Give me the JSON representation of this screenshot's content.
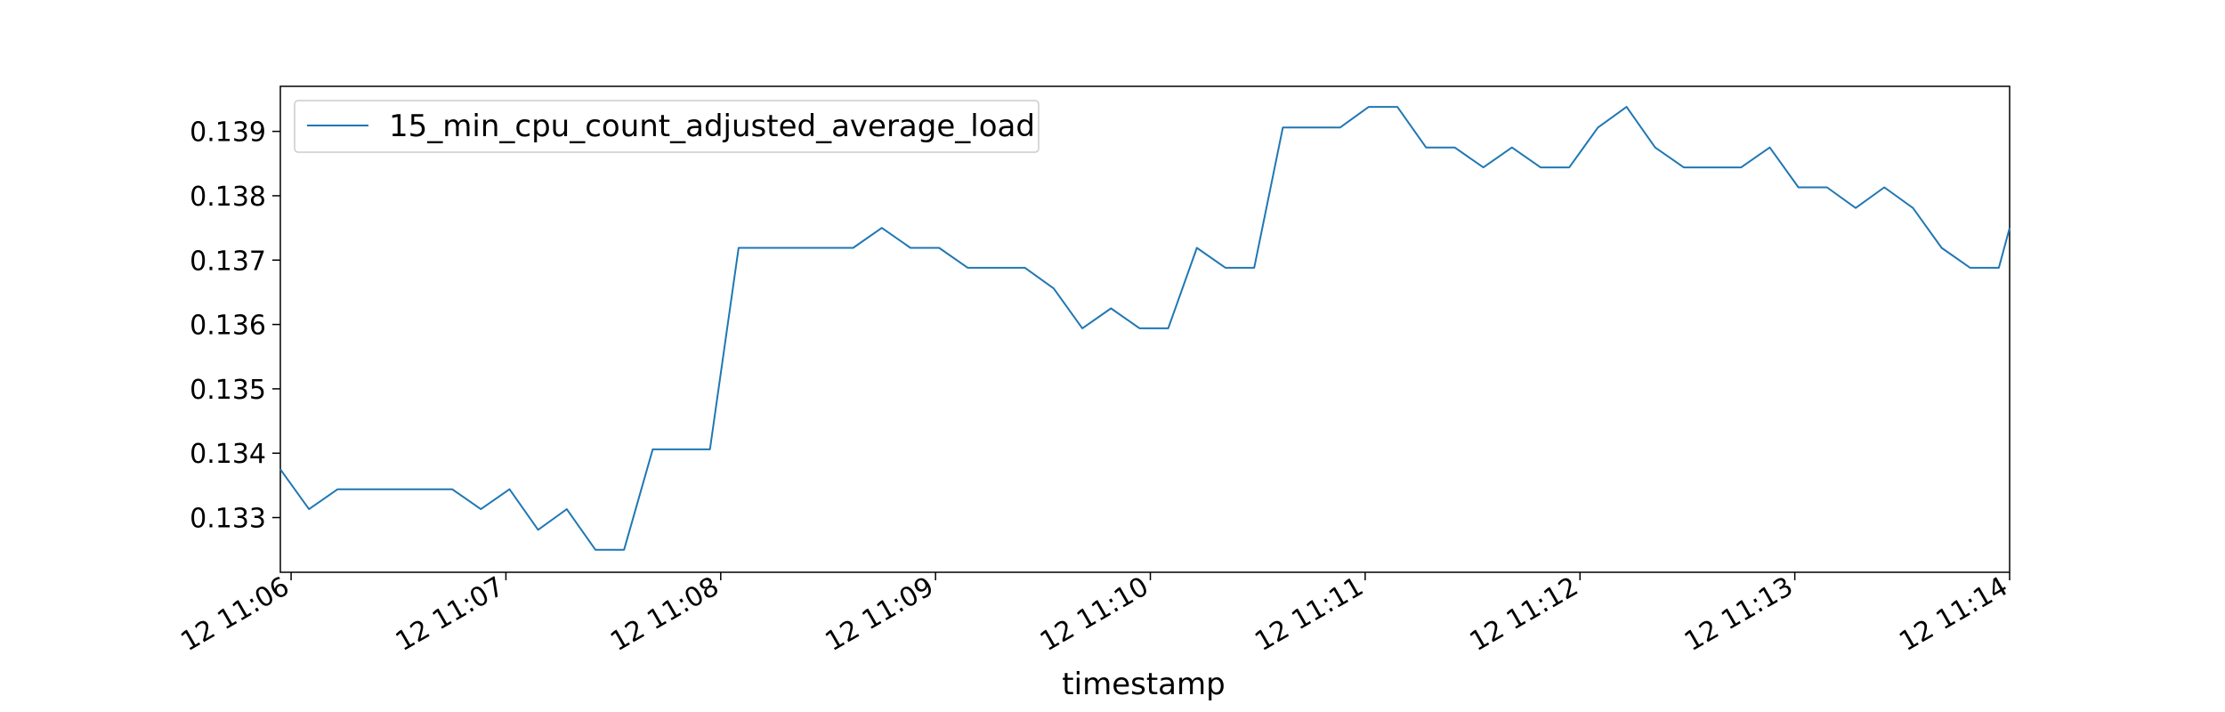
{
  "chart_data": {
    "type": "line",
    "title": "",
    "xlabel": "timestamp",
    "ylabel": "",
    "legend": {
      "placement": "upper-left"
    },
    "grid": false,
    "xlim": [
      "2024-01-12 11:05:57",
      "2024-01-12 11:14:00"
    ],
    "ylim": [
      0.13215,
      0.1397
    ],
    "x_ticks": [
      "2024-01-12 11:06",
      "2024-01-12 11:07",
      "2024-01-12 11:08",
      "2024-01-12 11:09",
      "2024-01-12 11:10",
      "2024-01-12 11:11",
      "2024-01-12 11:12",
      "2024-01-12 11:13",
      "2024-01-12 11:14"
    ],
    "x_tick_labels": [
      "12 11:06",
      "12 11:07",
      "12 11:08",
      "12 11:09",
      "12 11:10",
      "12 11:11",
      "12 11:12",
      "12 11:13",
      "12 11:14"
    ],
    "y_ticks": [
      0.133,
      0.134,
      0.135,
      0.136,
      0.137,
      0.138,
      0.139
    ],
    "y_tick_labels": [
      "0.133",
      "0.134",
      "0.135",
      "0.136",
      "0.137",
      "0.138",
      "0.139"
    ],
    "series": [
      {
        "name": "15_min_cpu_count_adjusted_average_load",
        "color": "#1f77b4",
        "x": [
          "2024-01-12 11:05:57",
          "2024-01-12 11:06:05",
          "2024-01-12 11:06:13",
          "2024-01-12 11:06:21",
          "2024-01-12 11:06:29",
          "2024-01-12 11:06:37",
          "2024-01-12 11:06:45",
          "2024-01-12 11:06:53",
          "2024-01-12 11:07:01",
          "2024-01-12 11:07:09",
          "2024-01-12 11:07:17",
          "2024-01-12 11:07:25",
          "2024-01-12 11:07:33",
          "2024-01-12 11:07:41",
          "2024-01-12 11:07:49",
          "2024-01-12 11:07:57",
          "2024-01-12 11:08:05",
          "2024-01-12 11:08:13",
          "2024-01-12 11:08:21",
          "2024-01-12 11:08:29",
          "2024-01-12 11:08:37",
          "2024-01-12 11:08:45",
          "2024-01-12 11:08:53",
          "2024-01-12 11:09:01",
          "2024-01-12 11:09:09",
          "2024-01-12 11:09:17",
          "2024-01-12 11:09:25",
          "2024-01-12 11:09:33",
          "2024-01-12 11:09:41",
          "2024-01-12 11:09:49",
          "2024-01-12 11:09:57",
          "2024-01-12 11:10:05",
          "2024-01-12 11:10:13",
          "2024-01-12 11:10:21",
          "2024-01-12 11:10:29",
          "2024-01-12 11:10:37",
          "2024-01-12 11:10:45",
          "2024-01-12 11:10:53",
          "2024-01-12 11:11:01",
          "2024-01-12 11:11:09",
          "2024-01-12 11:11:17",
          "2024-01-12 11:11:25",
          "2024-01-12 11:11:33",
          "2024-01-12 11:11:41",
          "2024-01-12 11:11:49",
          "2024-01-12 11:11:57",
          "2024-01-12 11:12:05",
          "2024-01-12 11:12:13",
          "2024-01-12 11:12:21",
          "2024-01-12 11:12:29",
          "2024-01-12 11:12:37",
          "2024-01-12 11:12:45",
          "2024-01-12 11:12:53",
          "2024-01-12 11:13:01",
          "2024-01-12 11:13:09",
          "2024-01-12 11:13:17",
          "2024-01-12 11:13:25",
          "2024-01-12 11:13:33",
          "2024-01-12 11:13:41",
          "2024-01-12 11:13:49",
          "2024-01-12 11:13:57",
          "2024-01-12 11:14:00"
        ],
        "y": [
          0.13375,
          0.13313,
          0.13344,
          0.13344,
          0.13344,
          0.13344,
          0.13344,
          0.13313,
          0.13344,
          0.13281,
          0.13313,
          0.1325,
          0.1325,
          0.13406,
          0.13406,
          0.13406,
          0.13719,
          0.13719,
          0.13719,
          0.13719,
          0.13719,
          0.1375,
          0.13719,
          0.13719,
          0.13688,
          0.13688,
          0.13688,
          0.13656,
          0.13594,
          0.13625,
          0.13594,
          0.13594,
          0.13719,
          0.13688,
          0.13688,
          0.13906,
          0.13906,
          0.13906,
          0.13938,
          0.13938,
          0.13875,
          0.13875,
          0.13844,
          0.13875,
          0.13844,
          0.13844,
          0.13906,
          0.13938,
          0.13875,
          0.13844,
          0.13844,
          0.13844,
          0.13875,
          0.13813,
          0.13813,
          0.13781,
          0.13813,
          0.13781,
          0.13719,
          0.13688,
          0.13688,
          0.1375
        ]
      }
    ]
  }
}
